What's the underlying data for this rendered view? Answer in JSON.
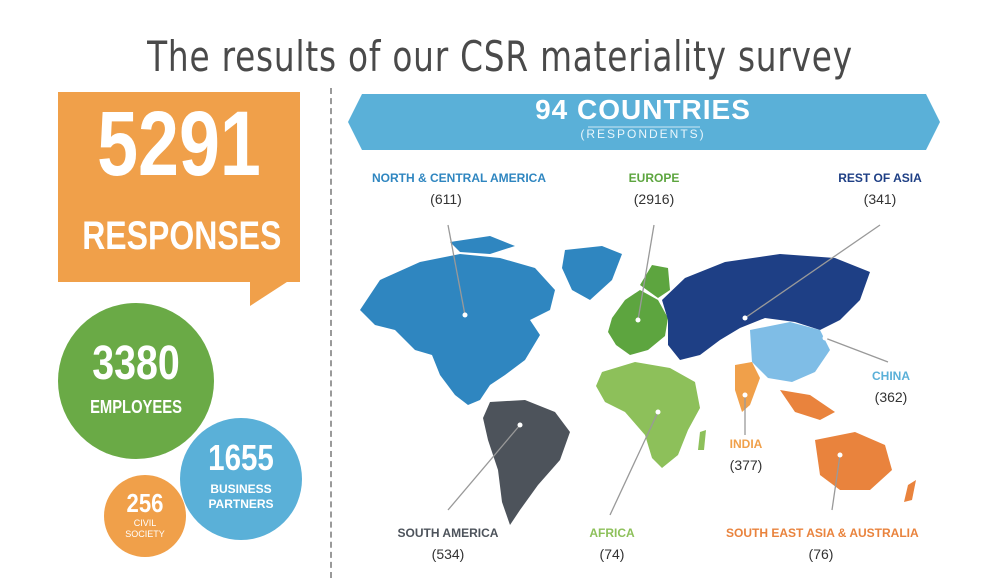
{
  "header": {
    "title": "The results of our CSR materiality survey"
  },
  "summary": {
    "responses": {
      "value": "5291",
      "label": "RESPONSES",
      "color": "#f0a04a"
    },
    "employees": {
      "value": "3380",
      "label": "EMPLOYEES",
      "color": "#6aaa46"
    },
    "business_partners": {
      "value": "1655",
      "label_line1": "BUSINESS",
      "label_line2": "PARTNERS",
      "color": "#5ab0d8"
    },
    "civil_society": {
      "value": "256",
      "label_line1": "CIVIL",
      "label_line2": "SOCIETY",
      "color": "#f0a04a"
    }
  },
  "countries_banner": {
    "title": "94 COUNTRIES",
    "subtitle": "(RESPONDENTS)",
    "color": "#5ab0d8"
  },
  "regions": [
    {
      "name": "NORTH & CENTRAL AMERICA",
      "count": "(611)",
      "color": "#2f86c0"
    },
    {
      "name": "EUROPE",
      "count": "(2916)",
      "color": "#5da53f"
    },
    {
      "name": "REST OF ASIA",
      "count": "(341)",
      "color": "#1e3f85"
    },
    {
      "name": "CHINA",
      "count": "(362)",
      "color": "#7fbde6"
    },
    {
      "name": "INDIA",
      "count": "(377)",
      "color": "#f0a04a"
    },
    {
      "name": "SOUTH AMERICA",
      "count": "(534)",
      "color": "#4d535b"
    },
    {
      "name": "AFRICA",
      "count": "(74)",
      "color": "#8dc05a"
    },
    {
      "name": "SOUTH EAST ASIA & AUSTRALIA",
      "count": "(76)",
      "color": "#e9833d"
    }
  ]
}
